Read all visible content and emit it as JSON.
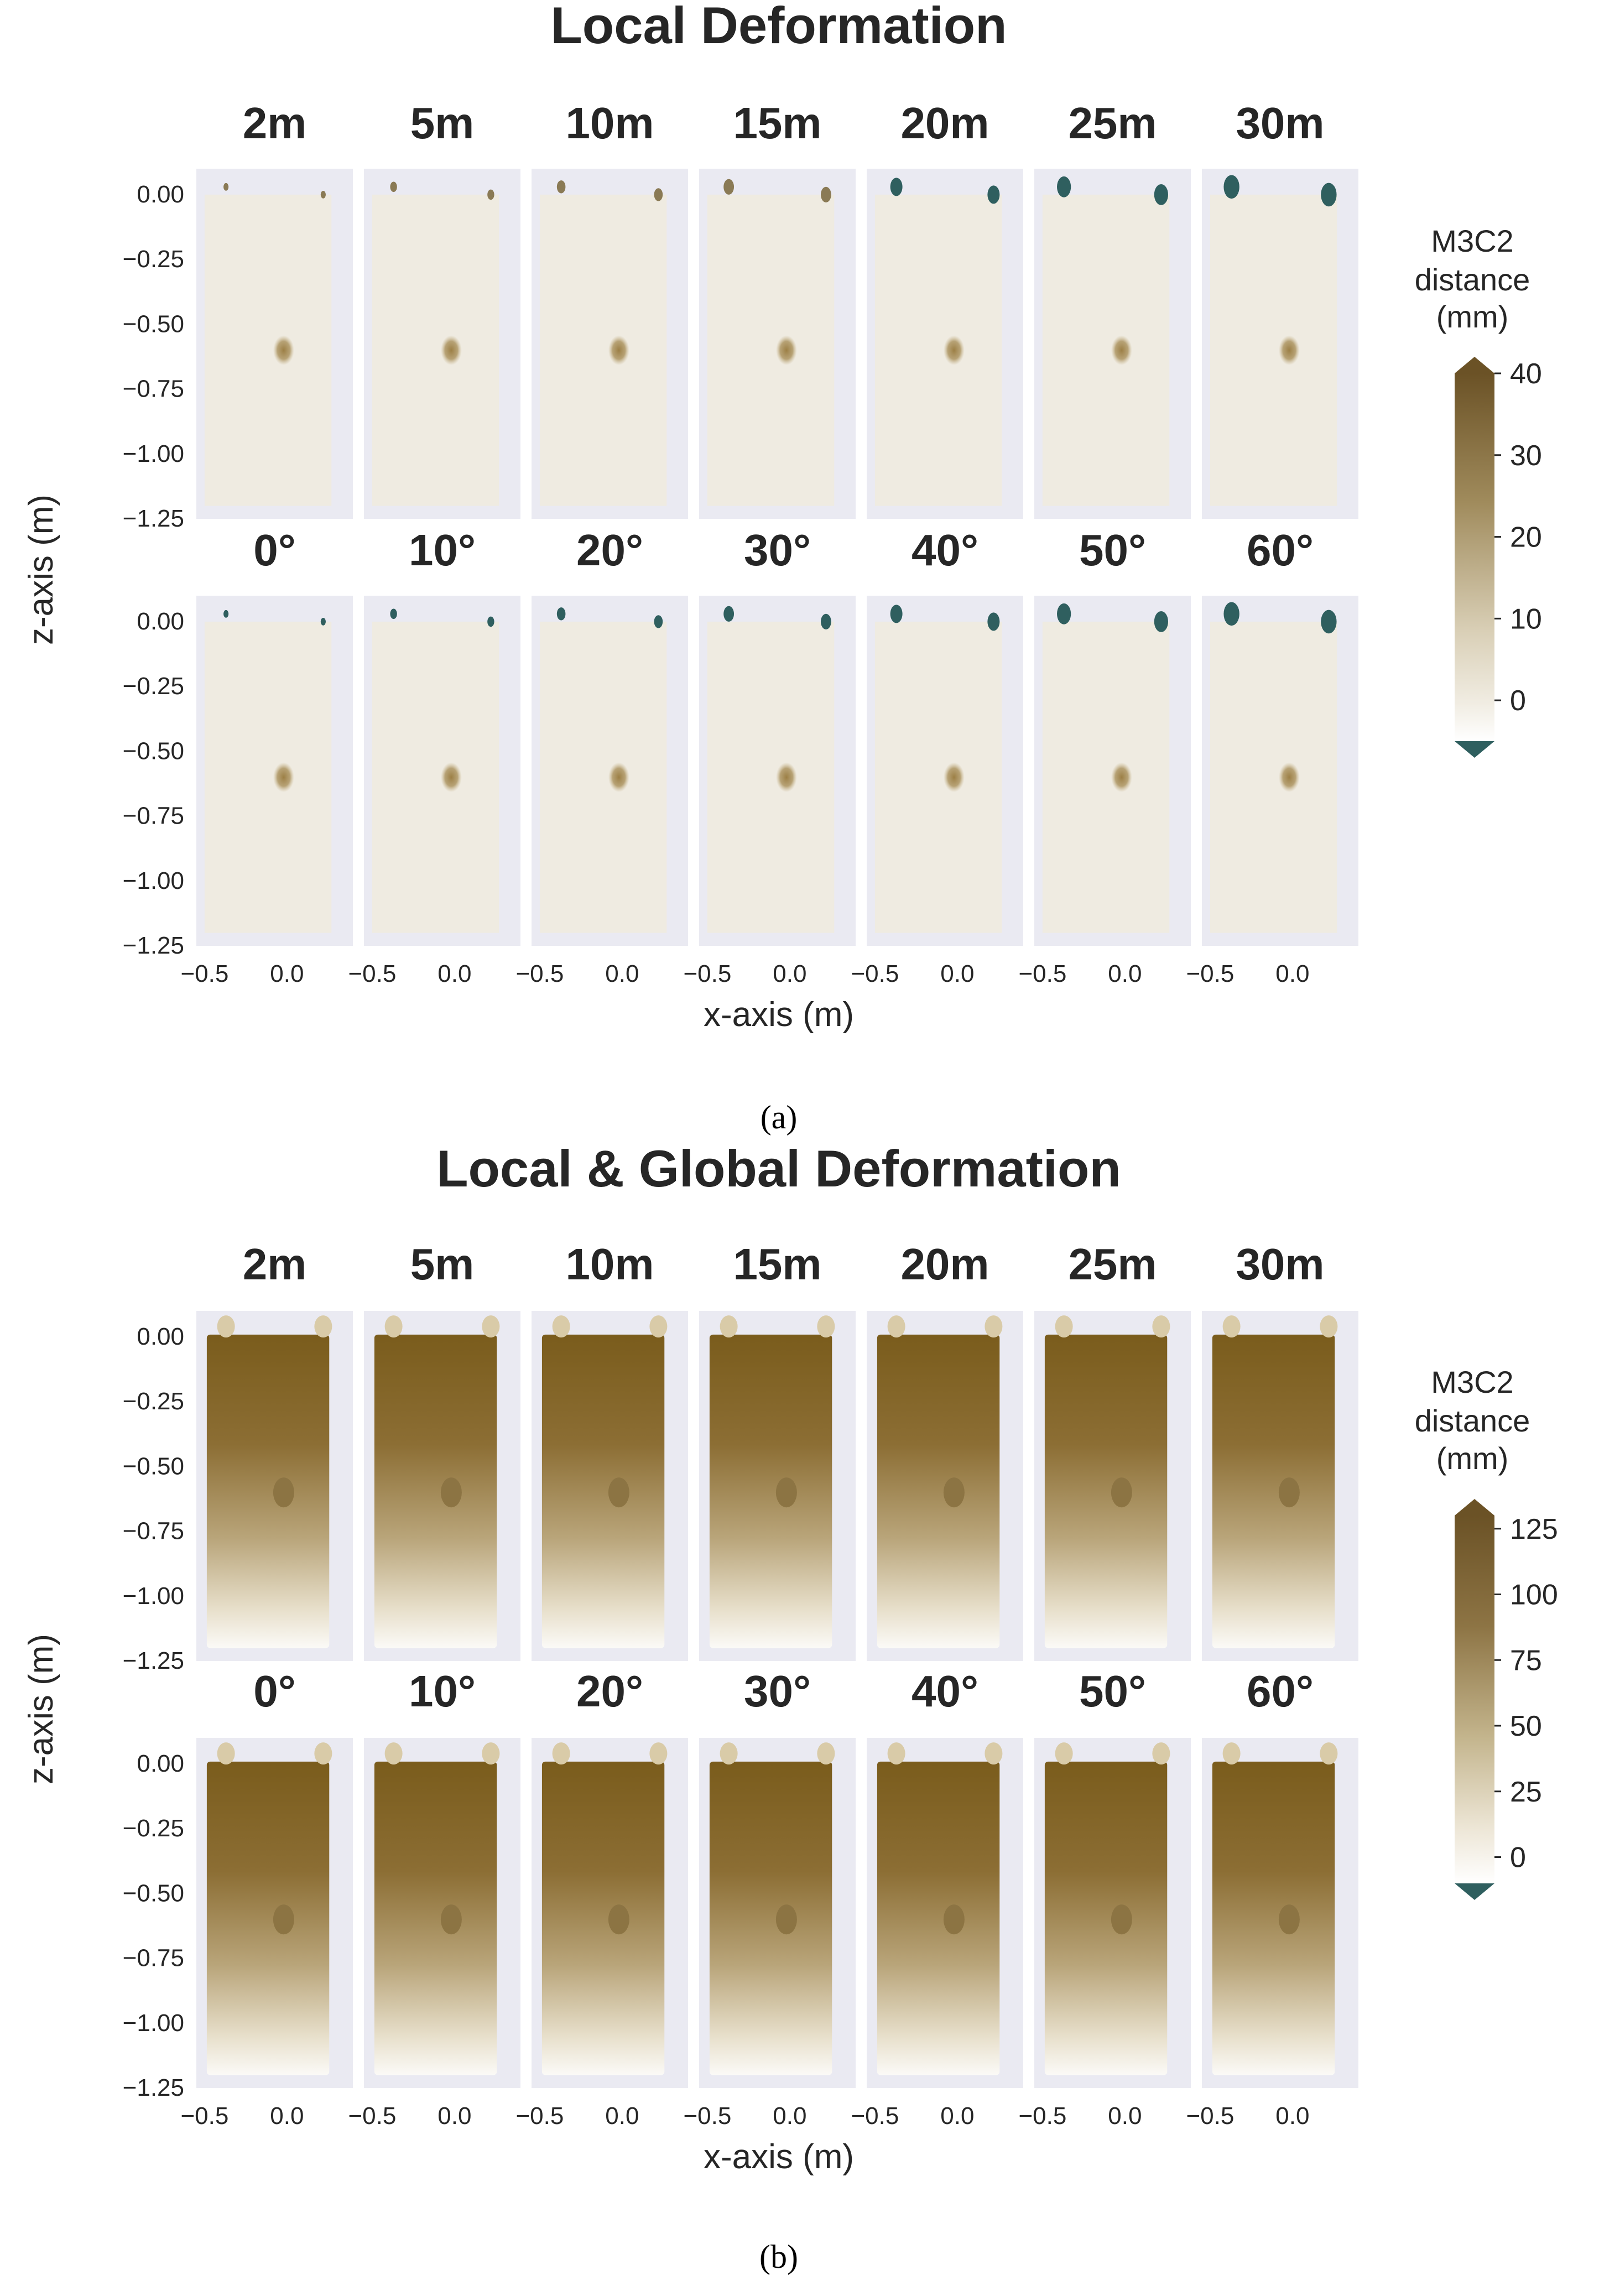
{
  "chart_data": [
    {
      "type": "heatmap",
      "title": "Local Deformation",
      "panel_label": "(a)",
      "xlabel": "x-axis (m)",
      "ylabel": "z-axis (m)",
      "xlim": [
        -0.55,
        0.4
      ],
      "ylim": [
        -1.25,
        0.1
      ],
      "xticks": [
        -0.5,
        0.0
      ],
      "xtick_labels": [
        "−0.5",
        "0.0"
      ],
      "yticks": [
        0.0,
        -0.25,
        -0.5,
        -0.75,
        -1.0,
        -1.25
      ],
      "ytick_labels": [
        "0.00",
        "−0.25",
        "−0.50",
        "−0.75",
        "−1.00",
        "−1.25"
      ],
      "row1_titles": [
        "2m",
        "5m",
        "10m",
        "15m",
        "20m",
        "25m",
        "30m"
      ],
      "row2_titles": [
        "0°",
        "10°",
        "20°",
        "30°",
        "40°",
        "50°",
        "60°"
      ],
      "colorbar": {
        "label_lines": [
          "M3C2",
          "distance",
          "(mm)"
        ],
        "range": [
          -5,
          40
        ],
        "ticks": [
          0,
          10,
          20,
          30,
          40
        ],
        "tick_labels": [
          "0",
          "10",
          "20",
          "30",
          "40"
        ],
        "extend": "both"
      },
      "global_gradient": false,
      "grid": true
    },
    {
      "type": "heatmap",
      "title": "Local & Global Deformation",
      "panel_label": "(b)",
      "xlabel": "x-axis (m)",
      "ylabel": "z-axis (m)",
      "xlim": [
        -0.55,
        0.4
      ],
      "ylim": [
        -1.25,
        0.1
      ],
      "xticks": [
        -0.5,
        0.0
      ],
      "xtick_labels": [
        "−0.5",
        "0.0"
      ],
      "yticks": [
        0.0,
        -0.25,
        -0.5,
        -0.75,
        -1.0,
        -1.25
      ],
      "ytick_labels": [
        "0.00",
        "−0.25",
        "−0.50",
        "−0.75",
        "−1.00",
        "−1.25"
      ],
      "row1_titles": [
        "2m",
        "5m",
        "10m",
        "15m",
        "20m",
        "25m",
        "30m"
      ],
      "row2_titles": [
        "0°",
        "10°",
        "20°",
        "30°",
        "40°",
        "50°",
        "60°"
      ],
      "colorbar": {
        "label_lines": [
          "M3C2",
          "distance",
          "(mm)"
        ],
        "range": [
          -10,
          130
        ],
        "ticks": [
          0,
          25,
          50,
          75,
          100,
          125
        ],
        "tick_labels": [
          "0",
          "25",
          "50",
          "75",
          "100",
          "125"
        ],
        "extend": "both"
      },
      "global_gradient": true,
      "grid": true
    }
  ],
  "colors": {
    "axes_bg": "#eaeaf2",
    "panel_base": "#efebe1",
    "brown_dark": "#6b5226",
    "brown_mid": "#a08b5c",
    "teal": "#2f5f5f",
    "text": "#262626"
  }
}
